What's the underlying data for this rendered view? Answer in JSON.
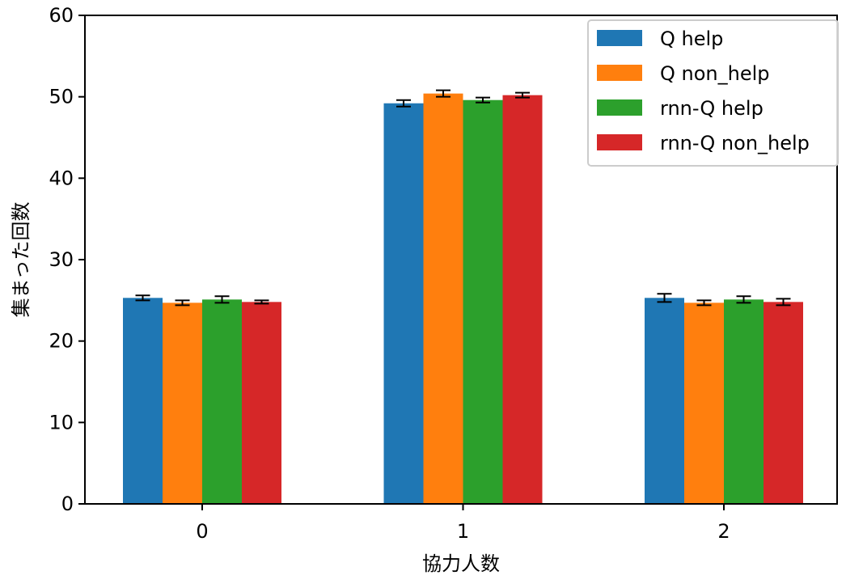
{
  "chart_data": {
    "type": "bar",
    "title": "",
    "xlabel": "協力人数",
    "ylabel": "集まった回数",
    "categories": [
      "0",
      "1",
      "2"
    ],
    "ylim": [
      0,
      60
    ],
    "yticks": [
      0,
      10,
      20,
      30,
      40,
      50,
      60
    ],
    "grid": false,
    "legend_position": "top-right",
    "series": [
      {
        "name": "Q help",
        "color": "#1f77b4",
        "values": [
          25.3,
          49.2,
          25.3
        ],
        "errors": [
          0.3,
          0.4,
          0.5
        ]
      },
      {
        "name": "Q non_help",
        "color": "#ff7f0e",
        "values": [
          24.7,
          50.4,
          24.7
        ],
        "errors": [
          0.3,
          0.4,
          0.3
        ]
      },
      {
        "name": "rnn-Q help",
        "color": "#2ca02c",
        "values": [
          25.1,
          49.6,
          25.1
        ],
        "errors": [
          0.4,
          0.3,
          0.4
        ]
      },
      {
        "name": "rnn-Q non_help",
        "color": "#d62728",
        "values": [
          24.8,
          50.2,
          24.8
        ],
        "errors": [
          0.2,
          0.3,
          0.4
        ]
      }
    ]
  }
}
